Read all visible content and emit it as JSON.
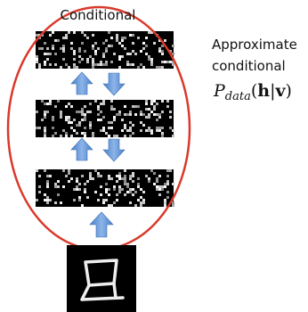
{
  "title": "Conditional",
  "note": {
    "line1": "Approximate",
    "line2": "conditional"
  },
  "formula": {
    "symbol": "P",
    "subscript": "data",
    "open": "(",
    "h": "h",
    "bar": "|",
    "v": "v",
    "close": ")"
  }
}
